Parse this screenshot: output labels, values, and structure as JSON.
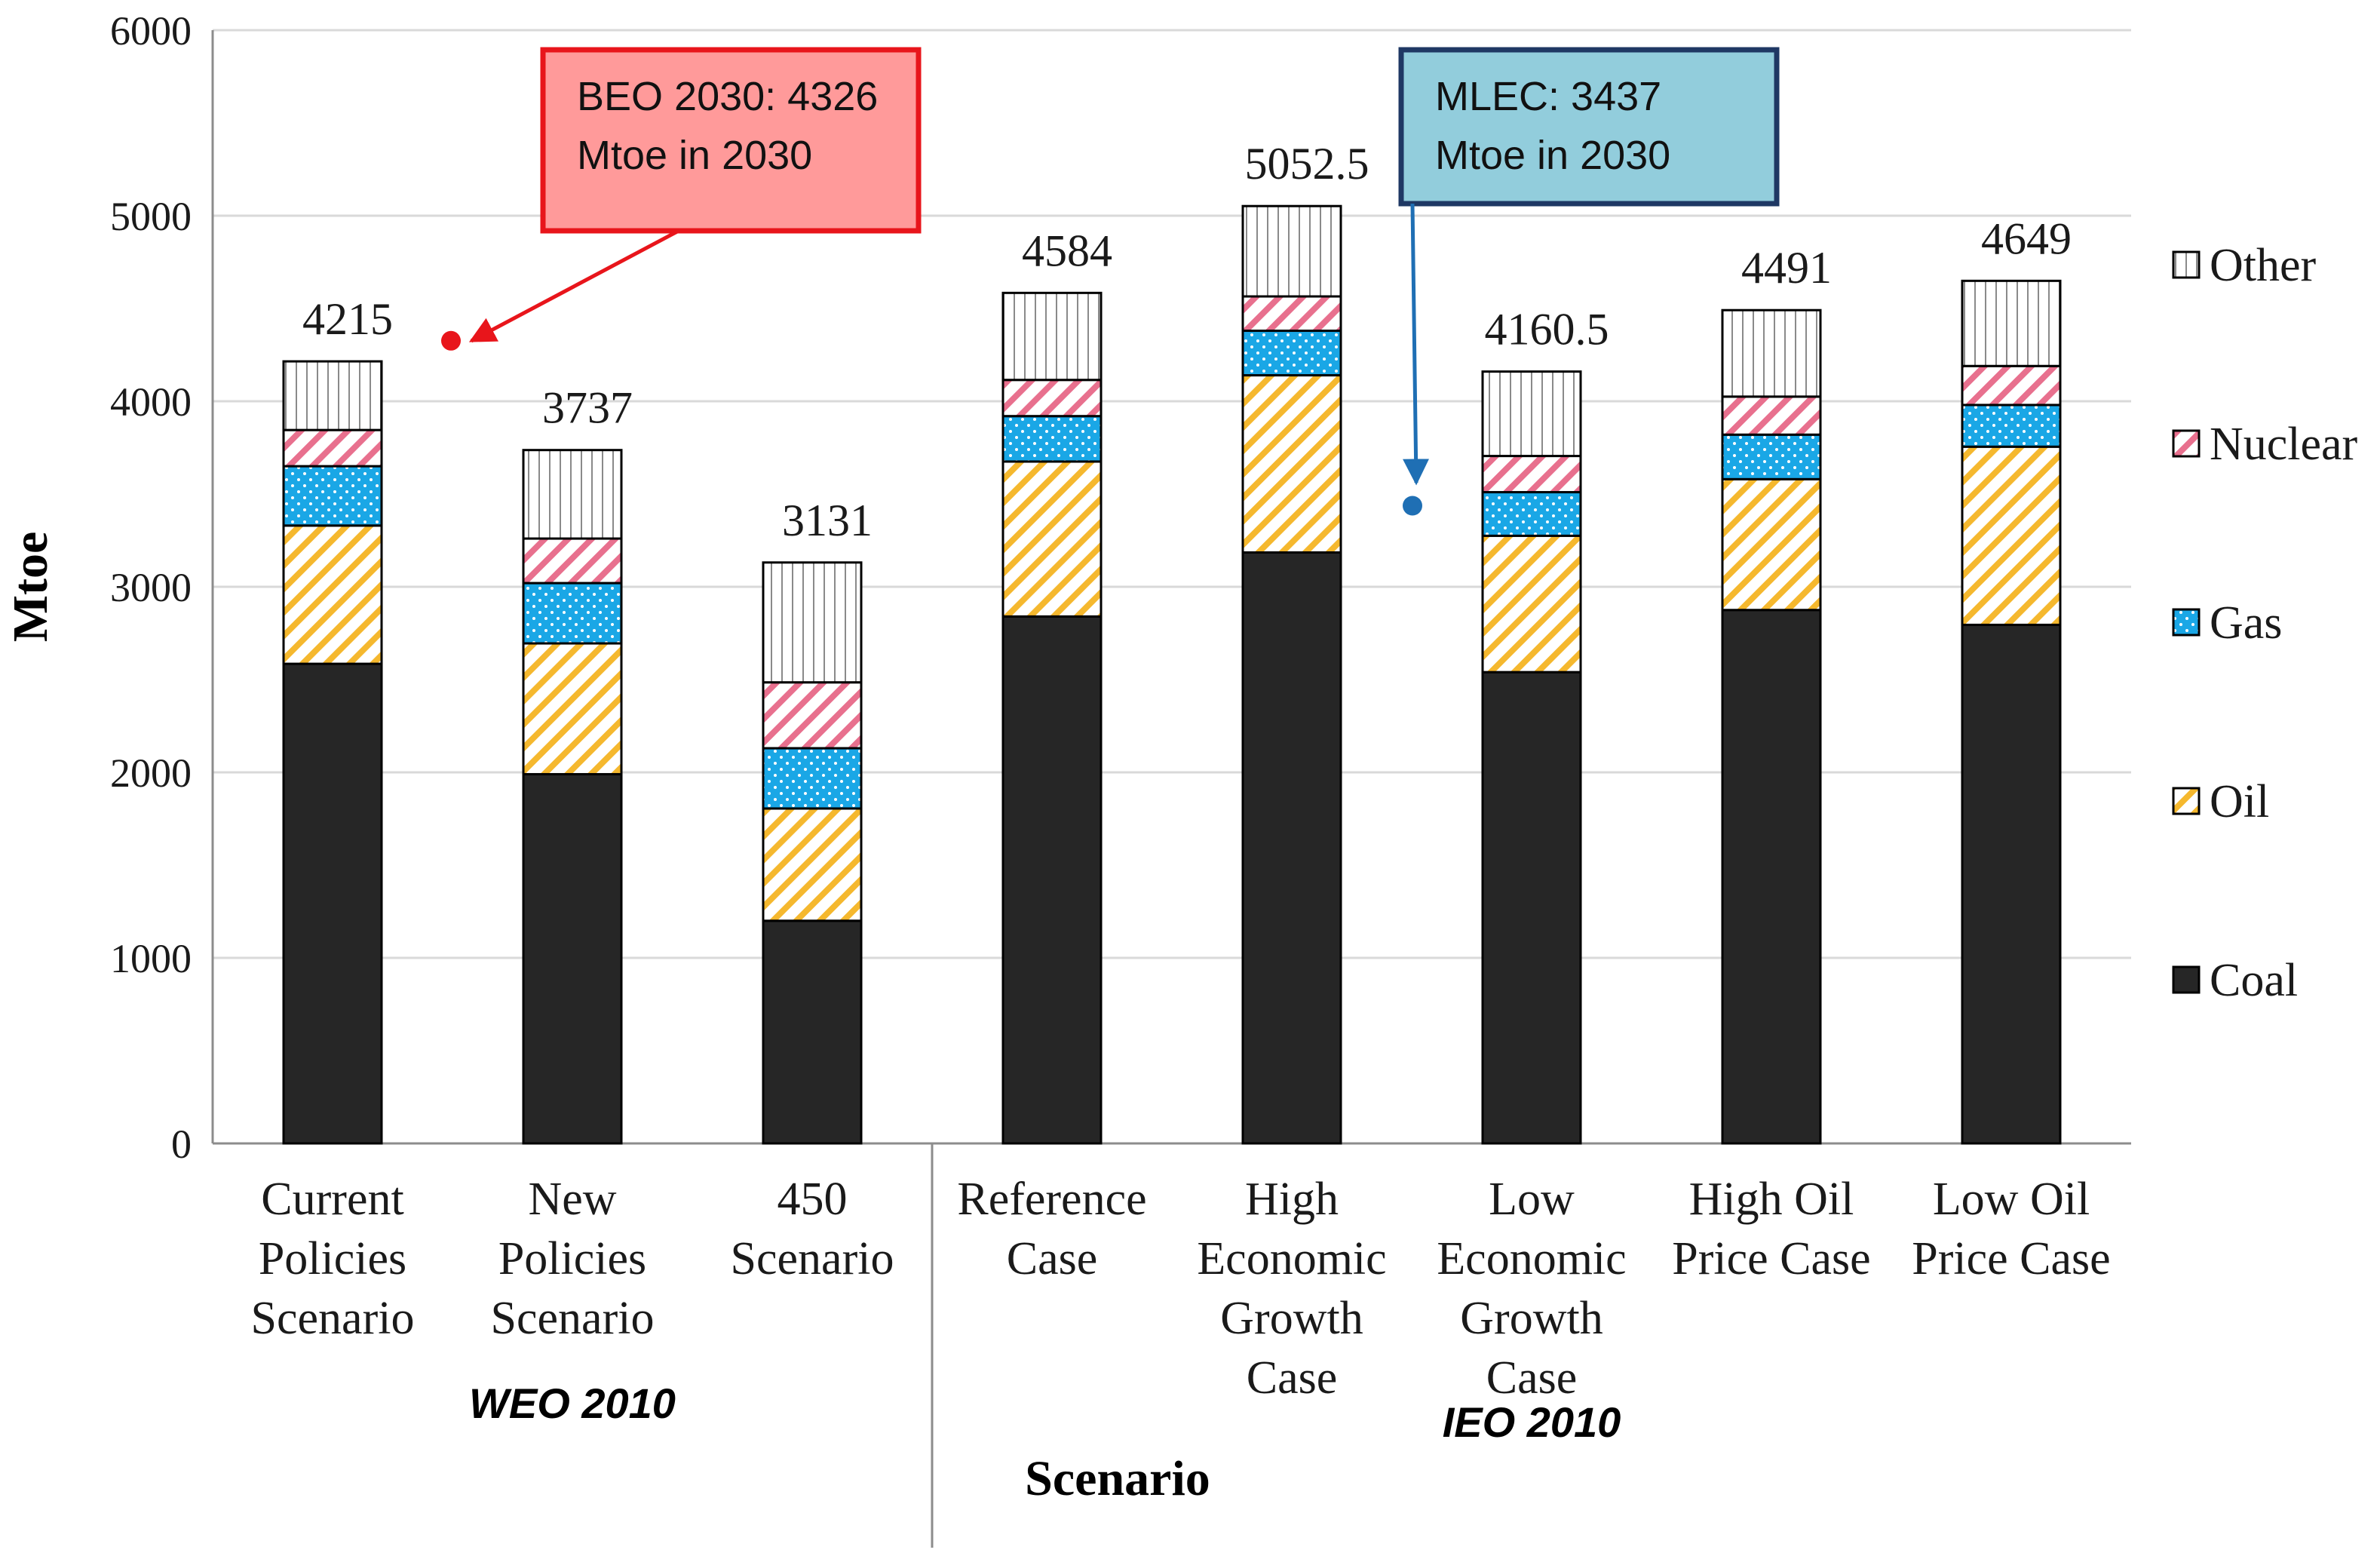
{
  "chart_data": {
    "type": "bar",
    "stacked": true,
    "title": "",
    "xlabel": "Scenario",
    "ylabel": "Mtoe",
    "ylim": [
      0,
      6000
    ],
    "yticks": [
      0,
      1000,
      2000,
      3000,
      4000,
      5000,
      6000
    ],
    "grid": true,
    "legend_position": "right",
    "categories": [
      [
        "Current",
        "Policies",
        "Scenario"
      ],
      [
        "New",
        "Policies",
        "Scenario"
      ],
      [
        "450",
        "Scenario"
      ],
      [
        "Reference",
        "Case"
      ],
      [
        "High",
        "Economic",
        "Growth",
        "Case"
      ],
      [
        "Low",
        "Economic",
        "Growth",
        "Case"
      ],
      [
        "High Oil",
        "Price Case"
      ],
      [
        "Low Oil",
        "Price Case"
      ]
    ],
    "totals": [
      "4215",
      "3737",
      "3131",
      "4584",
      "5052.5",
      "4160.5",
      "4491",
      "4649"
    ],
    "series": [
      {
        "name": "Coal",
        "color": "#262626",
        "pattern": "solid",
        "values": [
          2585,
          1990,
          1200,
          2840,
          3185,
          2540,
          2875,
          2795
        ]
      },
      {
        "name": "Oil",
        "color": "#f5b82e",
        "pattern": "diagonal",
        "values": [
          745,
          705,
          605,
          835,
          955,
          735,
          705,
          960
        ]
      },
      {
        "name": "Gas",
        "color": "#1aa7e6",
        "pattern": "dots",
        "values": [
          320,
          325,
          325,
          245,
          240,
          235,
          240,
          225
        ]
      },
      {
        "name": "Nuclear",
        "color": "#e8708e",
        "pattern": "diagonal",
        "values": [
          195,
          240,
          355,
          195,
          185,
          195,
          205,
          210
        ]
      },
      {
        "name": "Other",
        "color": "#9a9a9a",
        "pattern": "vertical",
        "values": [
          370,
          477,
          646,
          469,
          487,
          455,
          466,
          459
        ]
      }
    ],
    "legend_order": [
      "Other",
      "Nuclear",
      "Gas",
      "Oil",
      "Coal"
    ],
    "groups": [
      {
        "label": "WEO 2010",
        "categories": [
          0,
          1,
          2
        ]
      },
      {
        "label": "IEO 2010",
        "categories": [
          3,
          4,
          5,
          6,
          7
        ]
      }
    ],
    "annotations": [
      {
        "lines": [
          "BEO 2030: 4326",
          "Mtoe in 2030"
        ],
        "value": 4326,
        "box_color": "#ff9a9a",
        "border_color": "#e8151b",
        "arrow_color": "#e8151b"
      },
      {
        "lines": [
          "MLEC: 3437",
          "Mtoe in 2030"
        ],
        "value": 3437,
        "box_color": "#92cddc",
        "border_color": "#1f3864",
        "arrow_color": "#1f6fb4"
      }
    ]
  }
}
